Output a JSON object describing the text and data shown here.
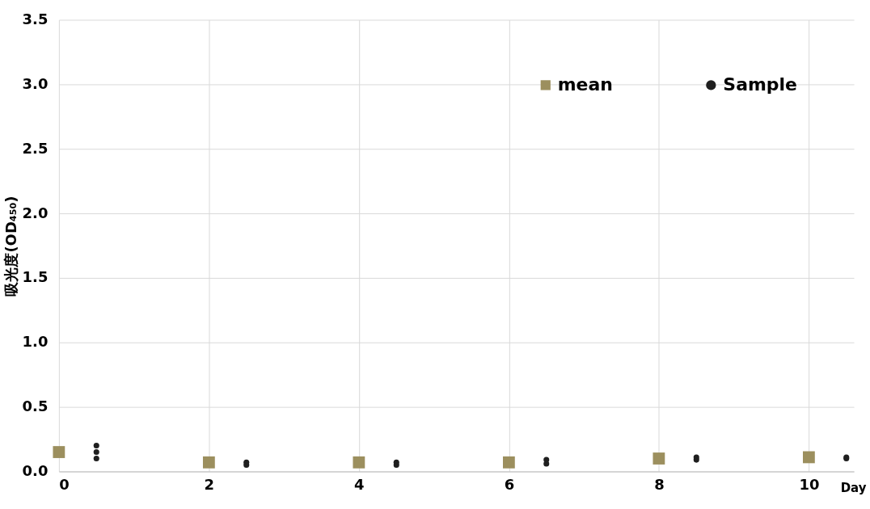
{
  "chart_data": {
    "type": "scatter",
    "ylabel": "吸光度(OD₄₅₀)",
    "xlabel": "Day",
    "xlim": [
      0,
      10.6
    ],
    "xticks": [
      0,
      2,
      4,
      6,
      8,
      10
    ],
    "ylim": [
      0,
      3.5
    ],
    "yticks": [
      {
        "value": 0,
        "label": "0.0"
      },
      {
        "value": 0.5,
        "label": "0.5"
      },
      {
        "value": 1,
        "label": "1.0"
      },
      {
        "value": 1.5,
        "label": "1.5"
      },
      {
        "value": 2,
        "label": "2.0"
      },
      {
        "value": 2.5,
        "label": "2.5"
      },
      {
        "value": 3,
        "label": "3.0"
      },
      {
        "value": 3.5,
        "label": "3.5"
      }
    ],
    "grid": true,
    "legend": "top right",
    "series": [
      {
        "name": "mean",
        "color": "#9c8f5e",
        "marker": "square",
        "x": [
          0,
          2,
          4,
          6,
          8,
          10
        ],
        "values": [
          0.15,
          0.07,
          0.07,
          0.07,
          0.1,
          0.11
        ]
      },
      {
        "name": "Sample",
        "color": "#1f1f1f",
        "marker": "circle",
        "x": [
          0.5,
          0.5,
          0.5,
          2.5,
          2.5,
          4.5,
          4.5,
          6.5,
          6.5,
          8.5,
          8.5,
          10.5,
          10.5
        ],
        "values": [
          0.2,
          0.15,
          0.1,
          0.05,
          0.07,
          0.05,
          0.07,
          0.06,
          0.09,
          0.09,
          0.11,
          0.1,
          0.11
        ]
      }
    ]
  }
}
